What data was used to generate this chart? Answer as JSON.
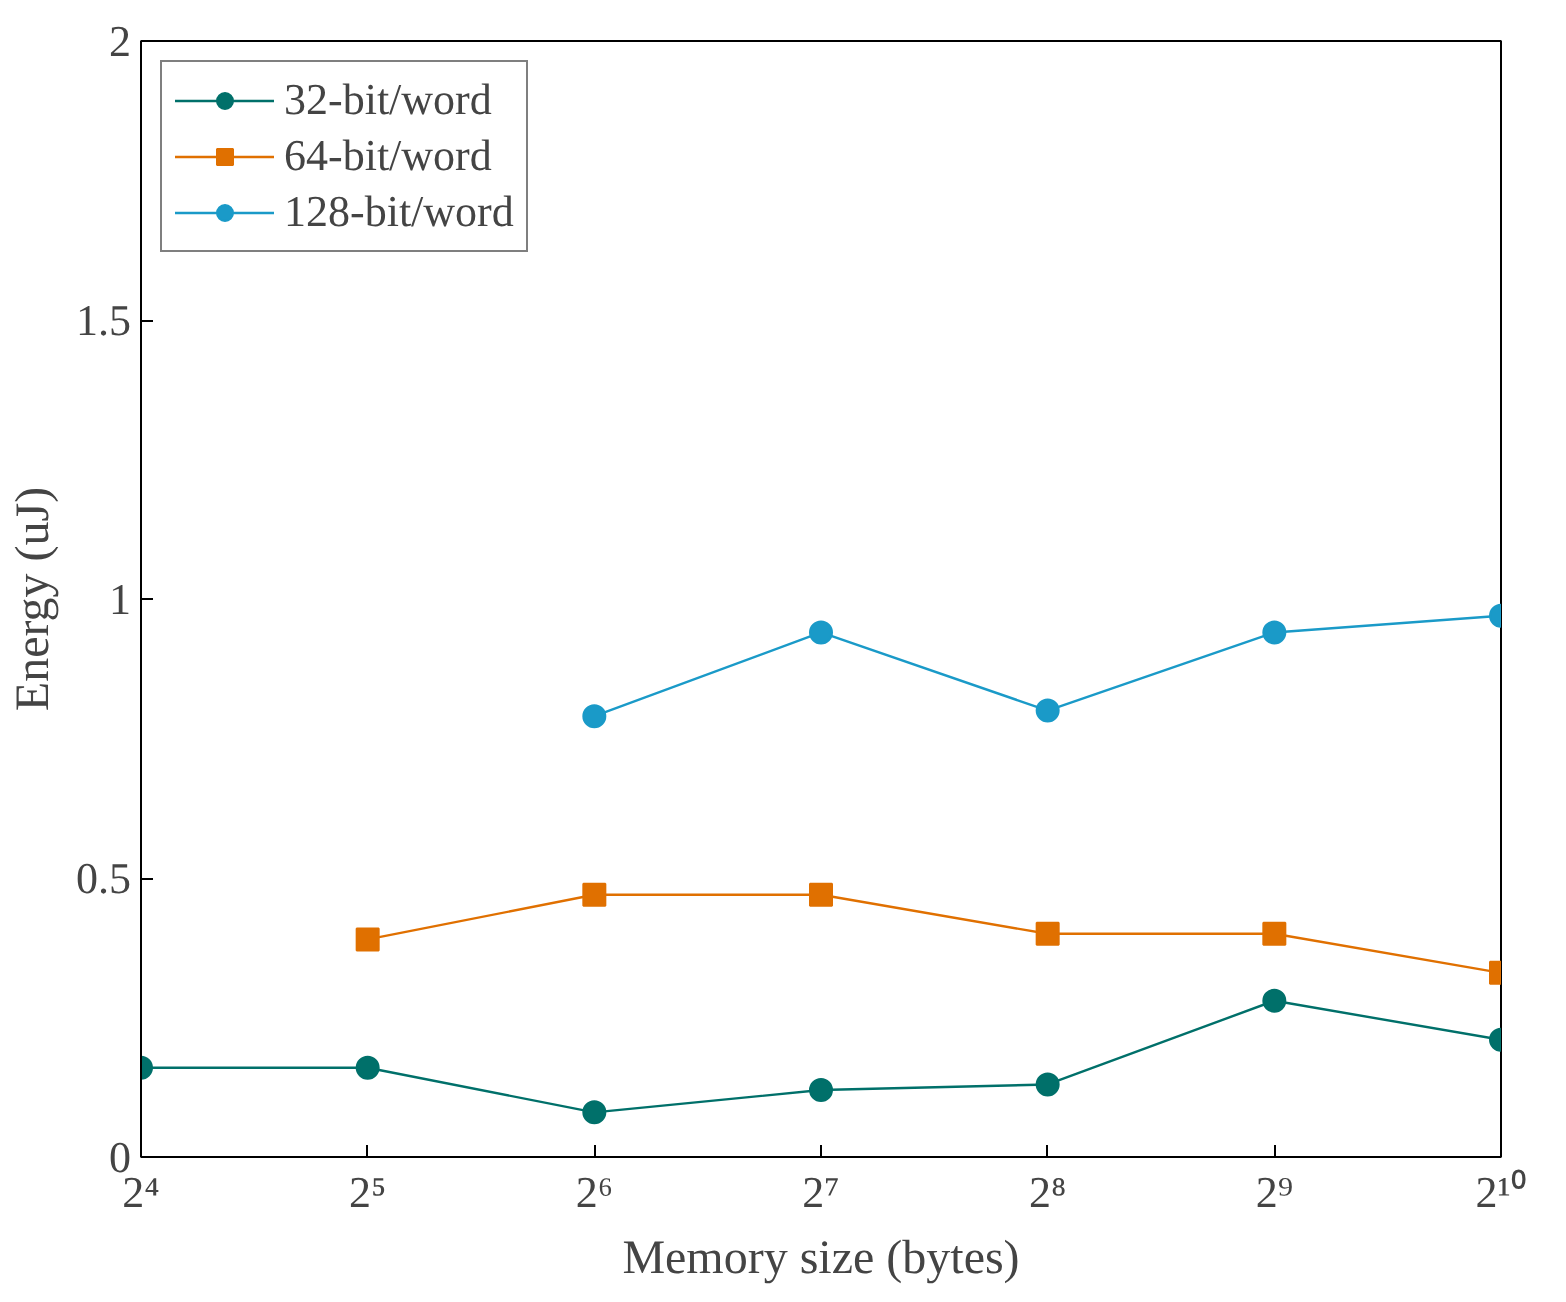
{
  "chart_data": {
    "type": "line",
    "xlabel": "Memory size (bytes)",
    "ylabel": "Energy (uJ)",
    "log": "x",
    "xlim": [
      16,
      1024
    ],
    "ylim": [
      0,
      2
    ],
    "xticks": [
      {
        "value": 16,
        "label": "2⁴"
      },
      {
        "value": 32,
        "label": "2⁵"
      },
      {
        "value": 64,
        "label": "2⁶"
      },
      {
        "value": 128,
        "label": "2⁷"
      },
      {
        "value": 256,
        "label": "2⁸"
      },
      {
        "value": 512,
        "label": "2⁹"
      },
      {
        "value": 1024,
        "label": "2¹⁰"
      }
    ],
    "yticks": [
      0,
      {
        "value": 0.5,
        "label": "0.5"
      },
      {
        "value": 1,
        "label": "1"
      },
      {
        "value": 1.5,
        "label": "1.5"
      },
      {
        "value": 2,
        "label": "2"
      }
    ],
    "grid": false,
    "legend": "top left",
    "line_style": "solid",
    "series": [
      {
        "name": "32-bit/word",
        "color": "#00706a",
        "marker": "circle",
        "x": [
          16,
          32,
          64,
          128,
          256,
          512,
          1024
        ],
        "values": [
          0.16,
          0.16,
          0.08,
          0.12,
          0.13,
          0.28,
          0.21
        ]
      },
      {
        "name": "64-bit/word",
        "color": "#e07000",
        "marker": "square",
        "x": [
          32,
          64,
          128,
          256,
          512,
          1024
        ],
        "values": [
          0.39,
          0.47,
          0.47,
          0.4,
          0.4,
          0.33
        ]
      },
      {
        "name": "128-bit/word",
        "color": "#1a9ac8",
        "marker": "circle",
        "x": [
          64,
          128,
          256,
          512,
          1024
        ],
        "values": [
          0.79,
          0.94,
          0.8,
          0.94,
          0.97
        ]
      }
    ]
  }
}
